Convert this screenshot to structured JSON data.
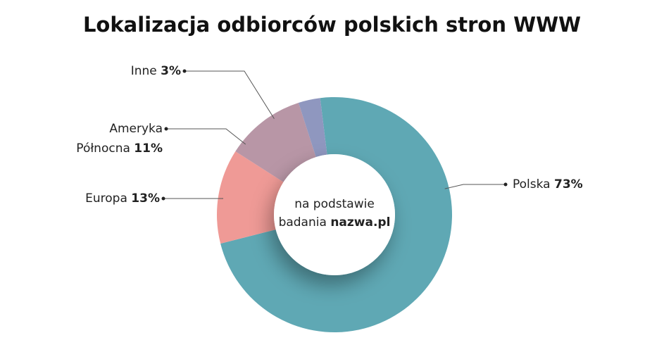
{
  "chart_data": {
    "type": "donut",
    "title": "Lokalizacja odbiorców polskich stron WWW",
    "categories": [
      "Polska",
      "Europa",
      "Ameryka Północna",
      "Inne"
    ],
    "values": [
      73,
      13,
      11,
      3
    ],
    "value_labels": [
      "73%",
      "13%",
      "11%",
      "3%"
    ],
    "colors": [
      "#5fa8b4",
      "#ef9a96",
      "#b896a6",
      "#8f97bf"
    ],
    "center_text": "na podstawie badania",
    "center_bold": "nazwa.pl"
  }
}
